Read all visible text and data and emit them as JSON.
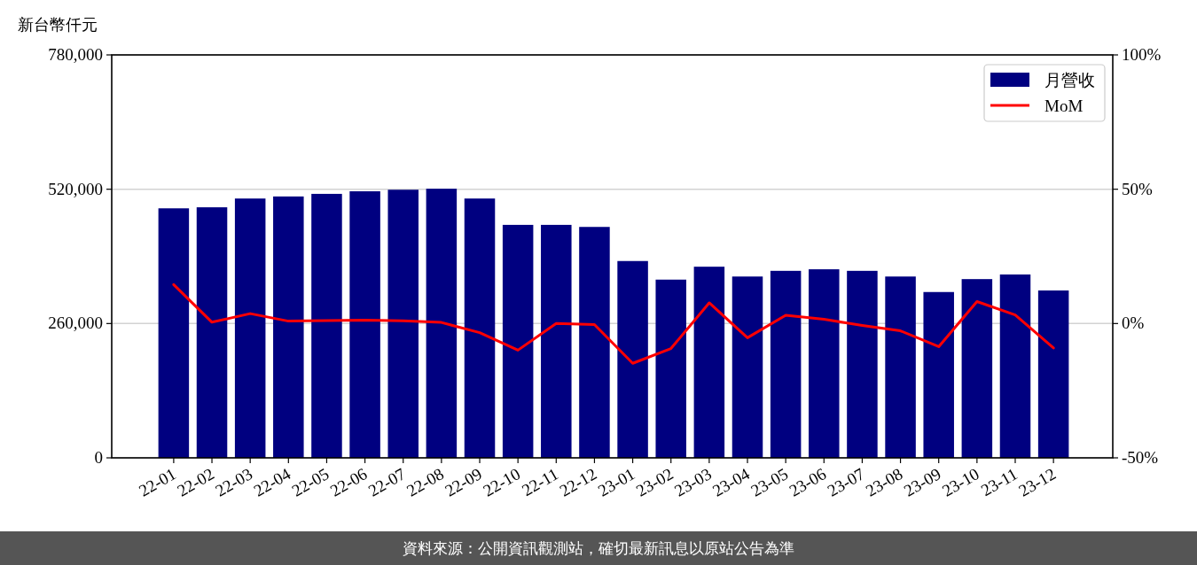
{
  "chart_data": {
    "type": "bar",
    "ylabel": "新台幣仟元",
    "categories": [
      "22-01",
      "22-02",
      "22-03",
      "22-04",
      "22-05",
      "22-06",
      "22-07",
      "22-08",
      "22-09",
      "22-10",
      "22-11",
      "22-12",
      "23-01",
      "23-02",
      "23-03",
      "23-04",
      "23-05",
      "23-06",
      "23-07",
      "23-08",
      "23-09",
      "23-10",
      "23-11",
      "23-12"
    ],
    "series": [
      {
        "name": "月營收",
        "color": "#000080",
        "values": [
          483000,
          485000,
          502000,
          506000,
          511000,
          516000,
          519000,
          521000,
          502000,
          451000,
          451000,
          447000,
          381000,
          345000,
          370000,
          351000,
          362000,
          365000,
          362000,
          351000,
          321000,
          346000,
          355000,
          324000
        ]
      },
      {
        "name": "MoM",
        "type": "line",
        "axis": "y2",
        "color": "#ff0000",
        "values": [
          14.5,
          0.5,
          3.7,
          0.9,
          1.1,
          1.3,
          1.0,
          0.4,
          -3.4,
          -9.9,
          0.0,
          -0.4,
          -14.8,
          -9.3,
          7.7,
          -5.3,
          3.1,
          1.6,
          -0.7,
          -2.7,
          -8.6,
          8.2,
          3.2,
          -9.1
        ]
      }
    ],
    "ylim": [
      0,
      780000
    ],
    "yticks": [
      0,
      {
        "value": 260000,
        "label": "260,000"
      },
      {
        "value": 520000,
        "label": "520,000"
      },
      {
        "value": 780000,
        "label": "780,000"
      }
    ],
    "y2lim": [
      -50,
      100
    ],
    "y2ticks": [
      {
        "value": -50,
        "label": "-50%"
      },
      {
        "value": 0,
        "label": "0%"
      },
      {
        "value": 50,
        "label": "50%"
      },
      {
        "value": 100,
        "label": "100%"
      }
    ],
    "grid": "y",
    "legend": "top right",
    "annotations": [
      "資料來源：公開資訊觀測站，確切最新訊息以原站公告為準"
    ]
  }
}
